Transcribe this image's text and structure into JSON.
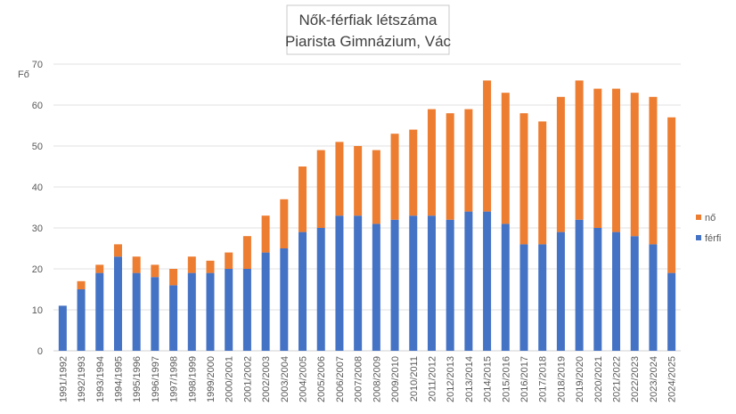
{
  "chart_data": {
    "type": "bar",
    "stacked": true,
    "title": [
      "Nők-férfiak létszáma",
      "Piarista Gimnázium, Vác"
    ],
    "ylabel": "Fő",
    "xlabel": "",
    "ylim": [
      0,
      70
    ],
    "yticks": [
      0,
      10,
      20,
      30,
      40,
      50,
      60,
      70
    ],
    "grid": true,
    "legend_position": "right",
    "categories": [
      "1991/1992",
      "1992/1993",
      "1993/1994",
      "1994/1995",
      "1995/1996",
      "1996/1997",
      "1997/1998",
      "1998/1999",
      "1999/2000",
      "2000/2001",
      "2001/2002",
      "2002/2003",
      "2003/2004",
      "2004/2005",
      "2005/2006",
      "2006/2007",
      "2007/2008",
      "2008/2009",
      "2009/2010",
      "2010/2011",
      "2011/2012",
      "2012/2013",
      "2013/2014",
      "2014/2015",
      "2015/2016",
      "2016/2017",
      "2017/2018",
      "2018/2019",
      "2019/2020",
      "2020/2021",
      "2021/2022",
      "2022/2023",
      "2023/2024",
      "2024/2025"
    ],
    "series": [
      {
        "name": "férfi",
        "color": "#4472c4",
        "values": [
          11,
          15,
          19,
          23,
          19,
          18,
          16,
          19,
          19,
          20,
          20,
          24,
          25,
          29,
          30,
          33,
          33,
          31,
          32,
          33,
          33,
          32,
          34,
          34,
          31,
          26,
          26,
          29,
          32,
          30,
          29,
          28,
          26,
          19
        ]
      },
      {
        "name": "nő",
        "color": "#ed7d31",
        "values": [
          0,
          2,
          2,
          3,
          4,
          3,
          4,
          4,
          3,
          4,
          8,
          9,
          12,
          16,
          19,
          18,
          17,
          18,
          21,
          21,
          26,
          26,
          25,
          32,
          32,
          32,
          30,
          33,
          34,
          34,
          35,
          35,
          36,
          38
        ]
      }
    ],
    "legend_order": [
      "nő",
      "férfi"
    ]
  }
}
